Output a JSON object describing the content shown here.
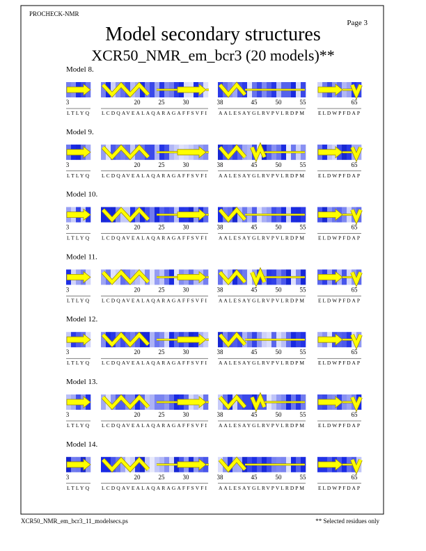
{
  "header": {
    "program": "PROCHECK-NMR",
    "page": "Page  3",
    "title": "Model secondary structures",
    "subtitle": "XCR50_NMR_em_bcr3 (20 models)**"
  },
  "segments": [
    {
      "sequence": "LTLYQ",
      "numbers": [
        3
      ]
    },
    {
      "sequence": "LCDQAVEALAQARAGAFFSVFI",
      "numbers": [
        20,
        25,
        30
      ]
    },
    {
      "sequence": "AALESAYGLRVPVLRDPM",
      "numbers": [
        38,
        45,
        50,
        55
      ]
    },
    {
      "sequence": "ELDWPFDAP",
      "numbers": [
        65
      ]
    }
  ],
  "models": [
    "Model  8.",
    "Model  9.",
    "Model 10.",
    "Model 11.",
    "Model 12.",
    "Model 13.",
    "Model 14."
  ],
  "footer": {
    "file": "XCR50_NMR_em_bcr3_11_modelsecs.ps",
    "note": "** Selected residues only"
  }
}
